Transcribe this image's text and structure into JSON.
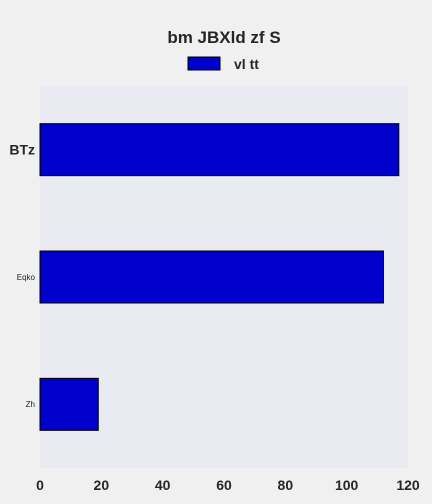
{
  "chart_data": {
    "type": "bar",
    "orientation": "horizontal",
    "title": "bm JBXld zf S",
    "categories": [
      "BTz",
      "Eqko",
      "Zh"
    ],
    "series": [
      {
        "name": "vl tt",
        "values": [
          117,
          112,
          19
        ],
        "color": "#0000cd"
      }
    ],
    "xlabel": "",
    "ylabel": "",
    "xlim": [
      0,
      120
    ],
    "x_ticks": [
      "0",
      "20",
      "40",
      "60",
      "80",
      "100",
      "120"
    ],
    "grid": false,
    "legend_position": "top-center",
    "plot_background": "#eaeaf2",
    "figure_background": "#f0f0f0",
    "bar_edge_color": "#000000"
  }
}
